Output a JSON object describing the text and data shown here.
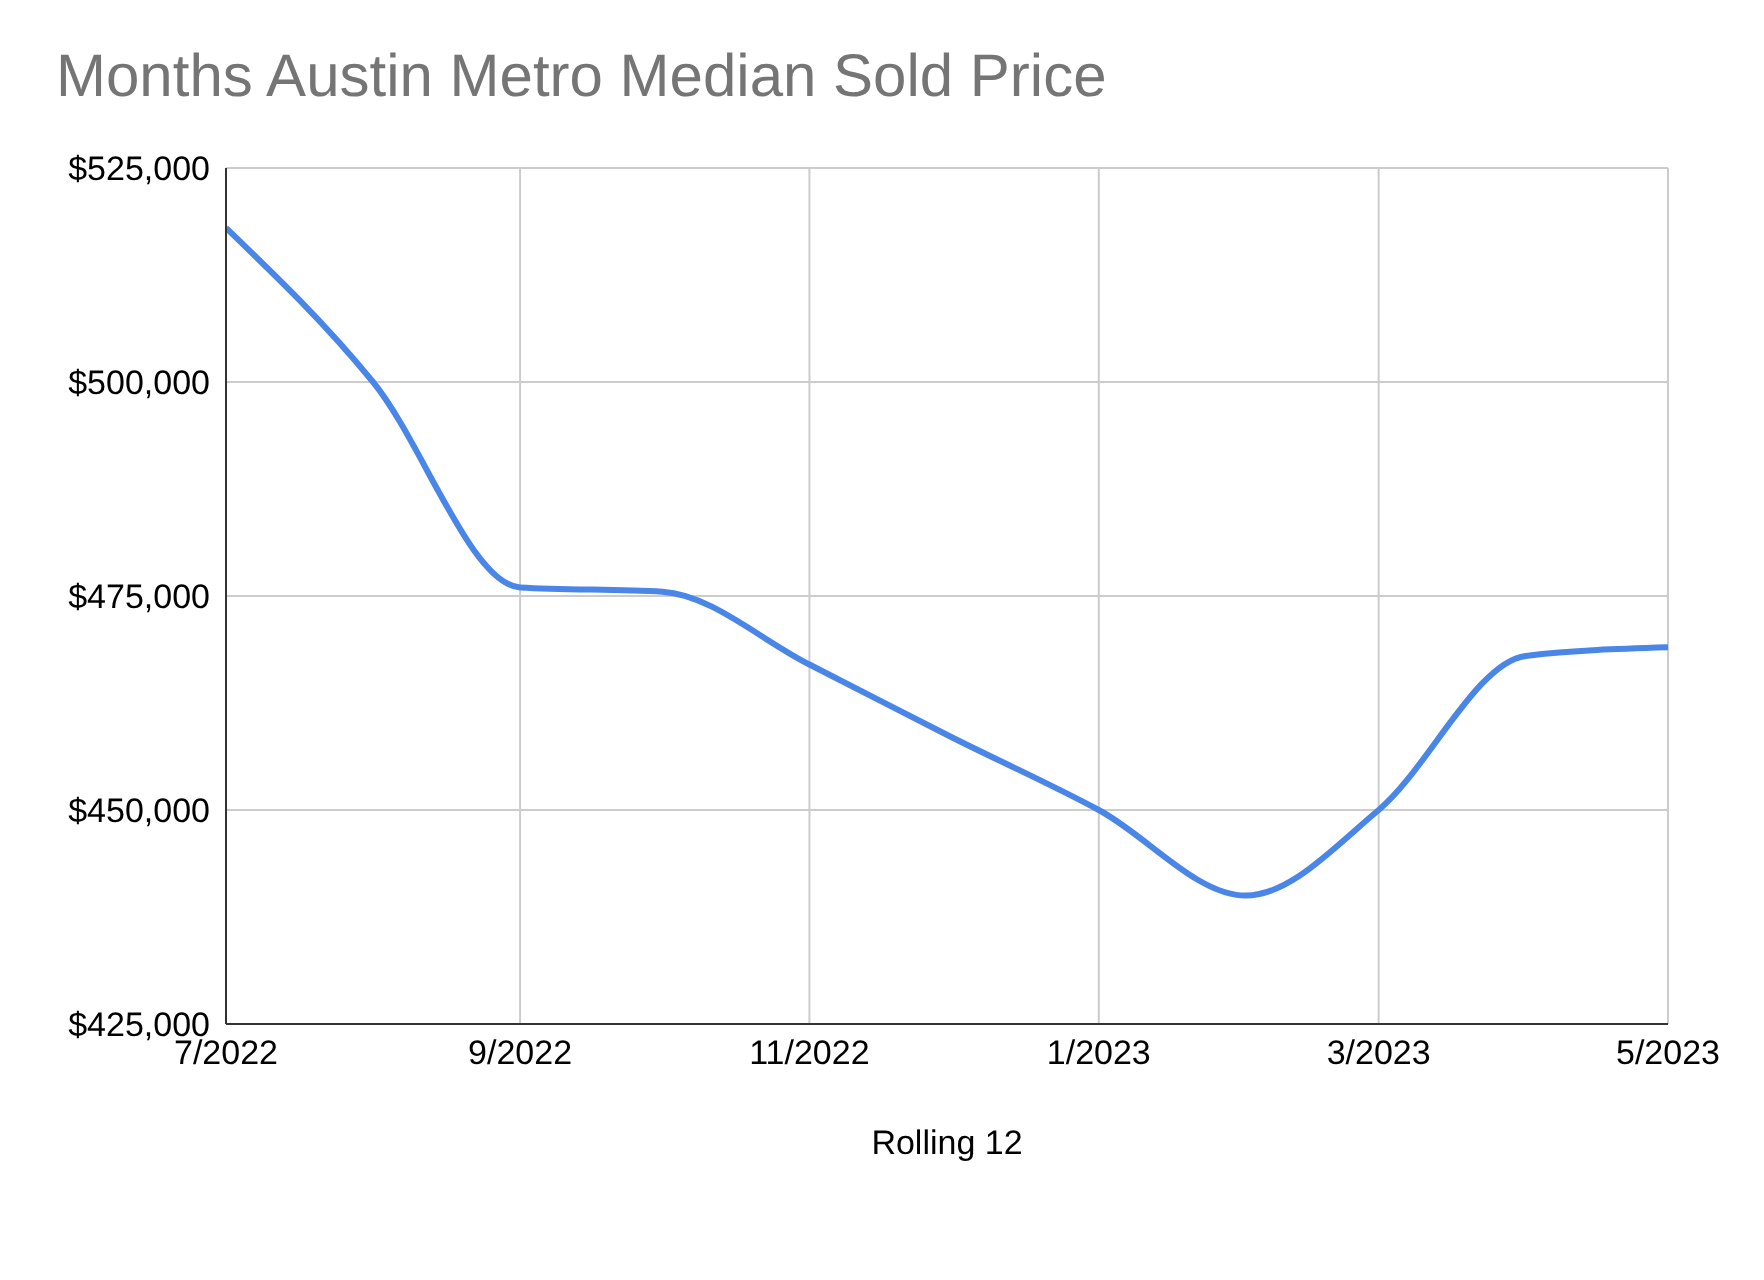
{
  "chart_data": {
    "type": "line",
    "title": "Months Austin Metro Median Sold Price",
    "xlabel": "Rolling 12",
    "x": [
      "2022-07",
      "2022-08",
      "2022-09",
      "2022-10",
      "2022-11",
      "2022-12",
      "2023-01",
      "2023-02",
      "2023-03",
      "2023-04",
      "2023-05"
    ],
    "series": [
      {
        "color": "#4a86e8",
        "values": [
          518000,
          500000,
          476000,
          475500,
          467000,
          458500,
          450000,
          440000,
          450000,
          468000,
          469000
        ]
      }
    ],
    "xlim": [
      "2022-07",
      "2023-05"
    ],
    "xticks": [
      {
        "value": "2022-07",
        "label": "7/2022"
      },
      {
        "value": "2022-09",
        "label": "9/2022"
      },
      {
        "value": "2022-11",
        "label": "11/2022"
      },
      {
        "value": "2023-01",
        "label": "1/2023"
      },
      {
        "value": "2023-03",
        "label": "3/2023"
      },
      {
        "value": "2023-05",
        "label": "5/2023"
      }
    ],
    "ylim": [
      425000,
      525000
    ],
    "yticks": [
      {
        "value": 425000,
        "label": "$425,000"
      },
      {
        "value": 450000,
        "label": "$450,000"
      },
      {
        "value": 475000,
        "label": "$475,000"
      },
      {
        "value": 500000,
        "label": "$500,000"
      },
      {
        "value": 525000,
        "label": "$525,000"
      }
    ],
    "grid": true,
    "legend": false,
    "marker": "none",
    "line_style": "solid"
  }
}
